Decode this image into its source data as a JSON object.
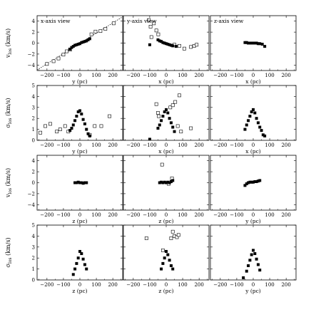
{
  "chart_data": [
    {
      "type": "scatter",
      "title": "x-axis view",
      "xlabel": "y (pc)",
      "ylabel": "v_los (km/s)",
      "xlim": [
        -260,
        260
      ],
      "ylim": [
        -5,
        5
      ],
      "xticks": [
        -200,
        -100,
        0,
        100,
        200
      ],
      "yticks": [
        -4,
        -2,
        0,
        2,
        4
      ],
      "show_ylabel": true,
      "show_xlabel": true,
      "fit_line": {
        "x": [
          -260,
          260
        ],
        "y": [
          -4.9,
          4.8
        ]
      },
      "series": [
        {
          "marker": "open-square",
          "points": [
            [
              -200,
              -3.8
            ],
            [
              -160,
              -3.3
            ],
            [
              -130,
              -2.8
            ],
            [
              -100,
              -2.1
            ],
            [
              -80,
              -1.5
            ],
            [
              -60,
              -1.2
            ],
            [
              70,
              1.6
            ],
            [
              95,
              2.1
            ],
            [
              125,
              2.2
            ],
            [
              155,
              2.6
            ],
            [
              205,
              3.6
            ]
          ]
        },
        {
          "marker": "filled-square",
          "points": [
            [
              -60,
              -1.1
            ],
            [
              -50,
              -0.8
            ],
            [
              -40,
              -0.6
            ],
            [
              -30,
              -0.4
            ],
            [
              -20,
              -0.3
            ],
            [
              -10,
              -0.2
            ],
            [
              0,
              -0.1
            ],
            [
              10,
              0.1
            ],
            [
              20,
              0.2
            ],
            [
              30,
              0.3
            ],
            [
              40,
              0.4
            ],
            [
              50,
              0.6
            ],
            [
              60,
              0.8
            ]
          ]
        }
      ]
    },
    {
      "type": "scatter",
      "title": "y-axis view",
      "xlabel": "x (pc)",
      "ylabel": "",
      "xlim": [
        -260,
        260
      ],
      "ylim": [
        -5,
        5
      ],
      "xticks": [
        -200,
        -100,
        0,
        100,
        200
      ],
      "yticks": [
        -4,
        -2,
        0,
        2,
        4
      ],
      "show_ylabel": false,
      "show_xlabel": true,
      "series": [
        {
          "marker": "open-square",
          "points": [
            [
              -105,
              4.2
            ],
            [
              -95,
              3.0
            ],
            [
              -75,
              3.6
            ],
            [
              -60,
              2.3
            ],
            [
              -48,
              1.6
            ],
            [
              -90,
              1.1
            ],
            [
              50,
              -0.3
            ],
            [
              80,
              -0.5
            ],
            [
              110,
              -1.0
            ],
            [
              150,
              -0.7
            ],
            [
              170,
              -0.5
            ],
            [
              185,
              -0.3
            ]
          ]
        },
        {
          "marker": "filled-square",
          "points": [
            [
              -100,
              -0.3
            ],
            [
              -50,
              0.6
            ],
            [
              -40,
              0.4
            ],
            [
              -30,
              0.3
            ],
            [
              -20,
              0.1
            ],
            [
              -10,
              0.0
            ],
            [
              0,
              -0.1
            ],
            [
              10,
              -0.2
            ],
            [
              20,
              -0.3
            ],
            [
              30,
              -0.4
            ],
            [
              40,
              -0.5
            ],
            [
              60,
              -0.6
            ]
          ]
        }
      ]
    },
    {
      "type": "scatter",
      "title": "z-axis view",
      "xlabel": "x (pc)",
      "ylabel": "",
      "xlim": [
        -260,
        260
      ],
      "ylim": [
        -5,
        5
      ],
      "xticks": [
        -200,
        -100,
        0,
        100,
        200
      ],
      "yticks": [
        -4,
        -2,
        0,
        2,
        4
      ],
      "show_ylabel": false,
      "show_xlabel": true,
      "series": [
        {
          "marker": "filled-square",
          "points": [
            [
              -50,
              0.1
            ],
            [
              -40,
              0.1
            ],
            [
              -30,
              0.0
            ],
            [
              -20,
              0.0
            ],
            [
              -10,
              0.0
            ],
            [
              0,
              0.0
            ],
            [
              10,
              0.0
            ],
            [
              20,
              0.0
            ],
            [
              30,
              -0.1
            ],
            [
              40,
              -0.1
            ],
            [
              55,
              -0.2
            ],
            [
              70,
              -0.6
            ]
          ]
        }
      ]
    },
    {
      "type": "scatter",
      "title": "",
      "xlabel": "y (pc)",
      "ylabel": "σ_los (km/s)",
      "xlim": [
        -260,
        260
      ],
      "ylim": [
        0,
        5
      ],
      "xticks": [
        -200,
        -100,
        0,
        100,
        200
      ],
      "yticks": [
        0,
        1,
        2,
        3,
        4,
        5
      ],
      "show_ylabel": true,
      "show_xlabel": true,
      "series": [
        {
          "marker": "open-square",
          "points": [
            [
              -240,
              0.7
            ],
            [
              -210,
              1.3
            ],
            [
              -180,
              1.5
            ],
            [
              -140,
              0.8
            ],
            [
              -120,
              1.0
            ],
            [
              -90,
              1.3
            ],
            [
              -70,
              0.8
            ],
            [
              60,
              0.5
            ],
            [
              90,
              1.3
            ],
            [
              130,
              1.3
            ],
            [
              180,
              2.2
            ]
          ]
        },
        {
          "marker": "filled-square",
          "points": [
            [
              -60,
              0.9
            ],
            [
              -50,
              1.1
            ],
            [
              -40,
              1.4
            ],
            [
              -30,
              1.8
            ],
            [
              -20,
              2.2
            ],
            [
              -10,
              2.6
            ],
            [
              0,
              2.7
            ],
            [
              10,
              2.4
            ],
            [
              20,
              1.9
            ],
            [
              30,
              1.5
            ],
            [
              40,
              1.0
            ],
            [
              50,
              0.6
            ],
            [
              60,
              0.4
            ]
          ]
        }
      ]
    },
    {
      "type": "scatter",
      "title": "",
      "xlabel": "x (pc)",
      "ylabel": "",
      "xlim": [
        -260,
        260
      ],
      "ylim": [
        0,
        5
      ],
      "xticks": [
        -200,
        -100,
        0,
        100,
        200
      ],
      "yticks": [
        0,
        1,
        2,
        3,
        4,
        5
      ],
      "show_ylabel": false,
      "show_xlabel": true,
      "series": [
        {
          "marker": "open-square",
          "points": [
            [
              -60,
              3.3
            ],
            [
              -50,
              2.5
            ],
            [
              -45,
              2.2
            ],
            [
              25,
              3.0
            ],
            [
              40,
              3.2
            ],
            [
              55,
              3.5
            ],
            [
              80,
              4.1
            ],
            [
              90,
              0.8
            ],
            [
              70,
              1.3
            ],
            [
              150,
              1.1
            ]
          ]
        },
        {
          "marker": "filled-square",
          "points": [
            [
              -100,
              0.1
            ],
            [
              -50,
              1.1
            ],
            [
              -40,
              1.4
            ],
            [
              -30,
              1.8
            ],
            [
              -20,
              2.2
            ],
            [
              -10,
              2.6
            ],
            [
              0,
              2.8
            ],
            [
              10,
              2.5
            ],
            [
              20,
              2.0
            ],
            [
              30,
              1.6
            ],
            [
              40,
              1.2
            ],
            [
              50,
              0.8
            ]
          ]
        }
      ]
    },
    {
      "type": "scatter",
      "title": "",
      "xlabel": "x (pc)",
      "ylabel": "",
      "xlim": [
        -260,
        260
      ],
      "ylim": [
        0,
        5
      ],
      "xticks": [
        -200,
        -100,
        0,
        100,
        200
      ],
      "yticks": [
        0,
        1,
        2,
        3,
        4,
        5
      ],
      "show_ylabel": false,
      "show_xlabel": true,
      "series": [
        {
          "marker": "filled-square",
          "points": [
            [
              -50,
              1.0
            ],
            [
              -40,
              1.4
            ],
            [
              -30,
              1.8
            ],
            [
              -20,
              2.2
            ],
            [
              -10,
              2.6
            ],
            [
              0,
              2.8
            ],
            [
              10,
              2.5
            ],
            [
              20,
              2.0
            ],
            [
              30,
              1.6
            ],
            [
              40,
              1.2
            ],
            [
              50,
              0.9
            ],
            [
              60,
              0.5
            ],
            [
              70,
              0.4
            ]
          ]
        }
      ]
    },
    {
      "type": "scatter",
      "title": "",
      "xlabel": "z (pc)",
      "ylabel": "v_los (km/s)",
      "xlim": [
        -260,
        260
      ],
      "ylim": [
        -5,
        5
      ],
      "xticks": [
        -200,
        -100,
        0,
        100,
        200
      ],
      "yticks": [
        -4,
        -2,
        0,
        2,
        4
      ],
      "show_ylabel": true,
      "show_xlabel": true,
      "series": [
        {
          "marker": "filled-square",
          "points": [
            [
              -30,
              0.0
            ],
            [
              -20,
              0.0
            ],
            [
              -10,
              0.1
            ],
            [
              0,
              0.0
            ],
            [
              10,
              0.0
            ],
            [
              20,
              -0.1
            ],
            [
              30,
              0.0
            ],
            [
              40,
              0.0
            ]
          ]
        }
      ]
    },
    {
      "type": "scatter",
      "title": "",
      "xlabel": "z (pc)",
      "ylabel": "",
      "xlim": [
        -260,
        260
      ],
      "ylim": [
        -5,
        5
      ],
      "xticks": [
        -200,
        -100,
        0,
        100,
        200
      ],
      "yticks": [
        -4,
        -2,
        0,
        2,
        4
      ],
      "show_ylabel": false,
      "show_xlabel": true,
      "series": [
        {
          "marker": "open-square",
          "points": [
            [
              -25,
              3.3
            ],
            [
              35,
              0.8
            ],
            [
              15,
              -0.2
            ]
          ]
        },
        {
          "marker": "filled-square",
          "points": [
            [
              -40,
              0.0
            ],
            [
              -30,
              0.1
            ],
            [
              -20,
              0.0
            ],
            [
              -10,
              0.1
            ],
            [
              0,
              0.0
            ],
            [
              10,
              0.1
            ],
            [
              20,
              0.0
            ],
            [
              30,
              0.2
            ],
            [
              40,
              0.4
            ]
          ]
        }
      ]
    },
    {
      "type": "scatter",
      "title": "",
      "xlabel": "y (pc)",
      "ylabel": "",
      "xlim": [
        -260,
        260
      ],
      "ylim": [
        -5,
        5
      ],
      "xticks": [
        -200,
        -100,
        0,
        100,
        200
      ],
      "yticks": [
        -4,
        -2,
        0,
        2,
        4
      ],
      "show_ylabel": false,
      "show_xlabel": true,
      "series": [
        {
          "marker": "filled-square",
          "points": [
            [
              -50,
              -0.5
            ],
            [
              -40,
              -0.2
            ],
            [
              -30,
              0.0
            ],
            [
              -20,
              0.1
            ],
            [
              -10,
              0.1
            ],
            [
              0,
              0.1
            ],
            [
              10,
              0.2
            ],
            [
              20,
              0.2
            ],
            [
              30,
              0.3
            ],
            [
              40,
              0.4
            ]
          ]
        }
      ]
    },
    {
      "type": "scatter",
      "title": "",
      "xlabel": "z (pc)",
      "ylabel": "σ_los (km/s)",
      "xlim": [
        -260,
        260
      ],
      "ylim": [
        0,
        5
      ],
      "xticks": [
        -200,
        -100,
        0,
        100,
        200
      ],
      "yticks": [
        0,
        1,
        2,
        3,
        4,
        5
      ],
      "show_ylabel": true,
      "show_xlabel": true,
      "series": [
        {
          "marker": "filled-square",
          "points": [
            [
              -40,
              0.5
            ],
            [
              -30,
              1.0
            ],
            [
              -20,
              1.5
            ],
            [
              -10,
              2.0
            ],
            [
              0,
              2.6
            ],
            [
              10,
              2.4
            ],
            [
              20,
              1.9
            ],
            [
              30,
              1.4
            ],
            [
              40,
              1.0
            ]
          ]
        }
      ]
    },
    {
      "type": "scatter",
      "title": "",
      "xlabel": "z (pc)",
      "ylabel": "",
      "xlim": [
        -260,
        260
      ],
      "ylim": [
        0,
        5
      ],
      "xticks": [
        -200,
        -100,
        0,
        100,
        200
      ],
      "yticks": [
        0,
        1,
        2,
        3,
        4,
        5
      ],
      "show_ylabel": false,
      "show_xlabel": true,
      "series": [
        {
          "marker": "open-square",
          "points": [
            [
              -120,
              3.8
            ],
            [
              -20,
              2.7
            ],
            [
              30,
              3.8
            ],
            [
              40,
              4.4
            ],
            [
              50,
              4.0
            ],
            [
              65,
              3.9
            ],
            [
              75,
              4.1
            ]
          ]
        },
        {
          "marker": "filled-square",
          "points": [
            [
              -30,
              1.0
            ],
            [
              -20,
              1.5
            ],
            [
              -10,
              2.0
            ],
            [
              0,
              2.6
            ],
            [
              10,
              2.3
            ],
            [
              20,
              1.8
            ],
            [
              30,
              1.3
            ],
            [
              40,
              1.0
            ]
          ]
        }
      ]
    },
    {
      "type": "scatter",
      "title": "",
      "xlabel": "y (pc)",
      "ylabel": "",
      "xlim": [
        -260,
        260
      ],
      "ylim": [
        0,
        5
      ],
      "xticks": [
        -200,
        -100,
        0,
        100,
        200
      ],
      "yticks": [
        0,
        1,
        2,
        3,
        4,
        5
      ],
      "show_ylabel": false,
      "show_xlabel": true,
      "series": [
        {
          "marker": "filled-square",
          "points": [
            [
              -60,
              0.2
            ],
            [
              -40,
              0.8
            ],
            [
              -30,
              1.3
            ],
            [
              -20,
              1.8
            ],
            [
              -10,
              2.3
            ],
            [
              0,
              2.7
            ],
            [
              10,
              2.4
            ],
            [
              20,
              1.9
            ],
            [
              30,
              1.4
            ],
            [
              40,
              0.9
            ]
          ]
        }
      ]
    }
  ]
}
